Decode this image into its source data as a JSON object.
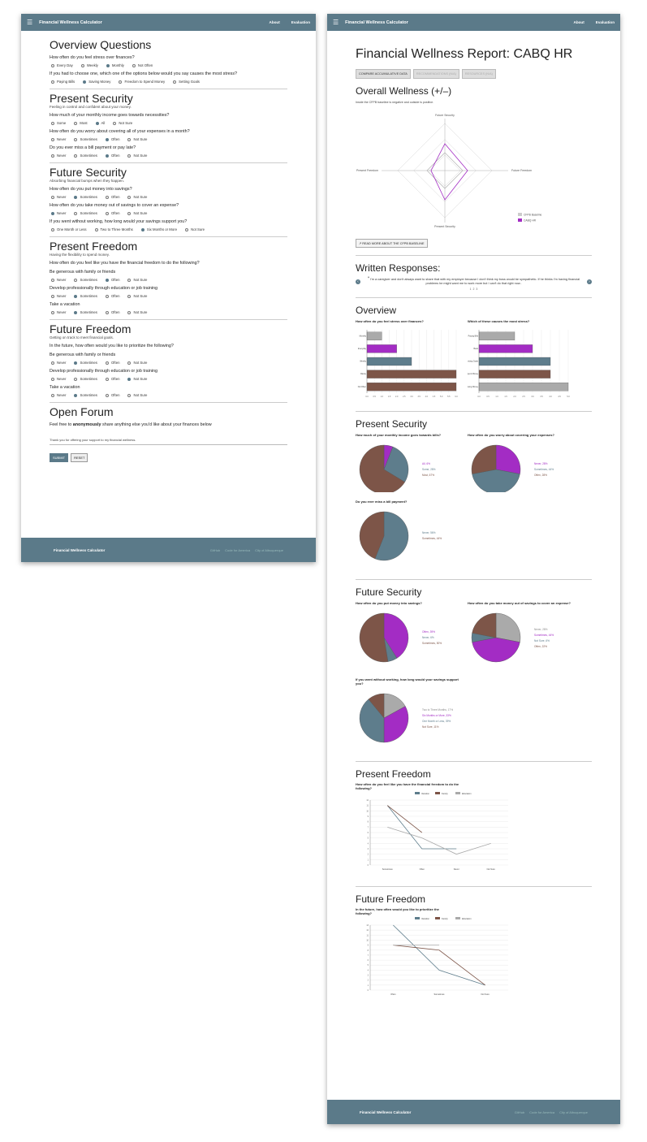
{
  "app": {
    "title": "Financial Wellness Calculator",
    "nav": [
      "About",
      "Evaluation"
    ],
    "footer_links": [
      "GitHub",
      "Code for America",
      "City of Albuquerque"
    ]
  },
  "survey": {
    "overview_title": "Overview Questions",
    "q1": "How often do you feel stress over finances?",
    "q1_opts": [
      "Every Day",
      "Weekly",
      "Monthly",
      "Not Often"
    ],
    "q2": "If you had to choose one, which one of the options below would you say causes the most stress?",
    "q2_opts": [
      "Paying Bills",
      "Saving Money",
      "Freedom to Spend Money",
      "Setting Goals"
    ],
    "ps_title": "Present Security",
    "ps_sub": "Feeling in control and confident about your money.",
    "ps_q1": "How much of your monthly income goes towards necessities?",
    "ps_q1_opts": [
      "Some",
      "Most",
      "All",
      "Not Sure"
    ],
    "ps_q2": "How often do you worry about covering all of your expenses in a month?",
    "ps_q2_opts": [
      "Never",
      "Sometimes",
      "Often",
      "Not Sure"
    ],
    "ps_q3": "Do you ever miss a bill payment or pay late?",
    "ps_q3_opts": [
      "Never",
      "Sometimes",
      "Often",
      "Not Sure"
    ],
    "fs_title": "Future Security",
    "fs_sub": "Absorbing financial bumps when they happen.",
    "fs_q1": "How often do you put money into savings?",
    "fs_q1_opts": [
      "Never",
      "Sometimes",
      "Often",
      "Not Sure"
    ],
    "fs_q2": "How often do you take money out of savings to cover an expense?",
    "fs_q2_opts": [
      "Never",
      "Sometimes",
      "Often",
      "Not Sure"
    ],
    "fs_q3": "If you went without working, how long would your savings support you?",
    "fs_q3_opts": [
      "One Month or Less",
      "Two to Three Months",
      "Six Months or More",
      "Not Sure"
    ],
    "pf_title": "Present Freedom",
    "pf_sub": "Having the flexibility to spend money.",
    "pf_q": "How often do you feel like you have the financial freedom to do the following?",
    "ff_title": "Future Freedom",
    "ff_sub": "Getting on track to meet financial goals.",
    "ff_q": "In the future, how often would you like to prioritize the following?",
    "sub_items": [
      "Be generous with family or friends",
      "Develop professionally through education or job training",
      "Take a vacation"
    ],
    "freq_opts": [
      "Never",
      "Sometimes",
      "Often",
      "Not Sure"
    ],
    "of_title": "Open Forum",
    "of_prompt_a": "Feel free to ",
    "of_prompt_b": "anonymously",
    "of_prompt_c": " share anything else you'd like about your finances below",
    "of_placeholder": "Thank you for offering your support to my financial wellness.",
    "submit": "SUBMIT",
    "reset": "RESET"
  },
  "report": {
    "title": "Financial Wellness Report: CABQ HR",
    "tabs": [
      "COMPARE ACCUMULATIVE DATA",
      "RECOMMENDATIONS (N/A)",
      "RESOURCES (N/A)"
    ],
    "overall_title": "Overall Wellness (+/–)",
    "overall_note": "Inside the CFPB baseline is negative and outside is positive.",
    "radar_axes": [
      "Future Security",
      "Future Freedom",
      "Present Security",
      "Present Freedom"
    ],
    "radar_legend": [
      "CFPB Baseline",
      "CABQ HR"
    ],
    "read_more": "READ MORE ABOUT THE CFPB BASELINE",
    "written_title": "Written Responses:",
    "quote": "I'm a caregiver and don't always want to share that with my employer because I don't think my boss would be sympathetic. If he thinks I'm having financial problems he might want me to work more but I can't do that right now..",
    "pager": [
      "1",
      "2",
      "3"
    ],
    "overview_title": "Overview",
    "ov_q1": "How often do you feel stress over finances?",
    "ov_q2": "Which of these causes the most stress?",
    "ps_title": "Present Security",
    "ps_q1": "How much of your monthly income goes towards bills?",
    "ps_q2": "How often do you worry about covering your expenses?",
    "ps_q3": "Do you ever miss a bill payment?",
    "fs_title": "Future Security",
    "fs_q1": "How often do you put money into savings?",
    "fs_q2": "How often do you take money out of savings to cover an expense?",
    "fs_q3": "If you went without working, how long would your savings support you?",
    "pf_title": "Present Freedom",
    "pf_q": "How often do you feel like you have the financial freedom to do the following?",
    "ff_title": "Future Freedom",
    "ff_q": "In the future, how often would you like to prioritize the following?"
  },
  "colors": {
    "grey": "#aaaaaa",
    "purple": "#a32cc4",
    "blue": "#5e7d8c",
    "brown": "#7d5548",
    "nav": "#5b7a89"
  },
  "chart_data": [
    {
      "type": "bar",
      "title": "How often do you feel stress over finances?",
      "categories": [
        "Monthly",
        "Everyday",
        "Weekly",
        "Rarely",
        "Not Often"
      ],
      "values": [
        1,
        2,
        3,
        6,
        6
      ],
      "xlim": [
        0,
        6
      ],
      "colors": [
        "#aaaaaa",
        "#a32cc4",
        "#5e7d8c",
        "#7d5548",
        "#7d5548"
      ]
    },
    {
      "type": "bar",
      "title": "Which of these causes the most stress?",
      "categories": [
        "Paying Bills",
        "Bank",
        "Setting Goals",
        "Freedom to Spend Money",
        "Saving Money"
      ],
      "values": [
        2,
        3,
        4,
        4,
        5
      ],
      "xlim": [
        0,
        5
      ],
      "colors": [
        "#aaaaaa",
        "#a32cc4",
        "#5e7d8c",
        "#7d5548",
        "#aaaaaa"
      ]
    },
    {
      "type": "pie",
      "title": "How much of your monthly income goes towards bills?",
      "labels": [
        "All, 6%",
        "Some, 28%",
        "Most, 67%"
      ],
      "values": [
        6,
        28,
        67
      ],
      "colors": [
        "#a32cc4",
        "#5e7d8c",
        "#7d5548"
      ]
    },
    {
      "type": "pie",
      "title": "How often do you worry about covering your expenses?",
      "labels": [
        "Never, 28%",
        "Sometimes, 44%",
        "Often, 28%"
      ],
      "values": [
        28,
        44,
        28
      ],
      "colors": [
        "#a32cc4",
        "#5e7d8c",
        "#7d5548"
      ]
    },
    {
      "type": "pie",
      "title": "Do you ever miss a bill payment?",
      "labels": [
        "Never, 56%",
        "Sometimes, 44%"
      ],
      "values": [
        56,
        44
      ],
      "colors": [
        "#5e7d8c",
        "#7d5548"
      ]
    },
    {
      "type": "pie",
      "title": "How often do you put money into savings?",
      "labels": [
        "Often, 39%",
        "Never, 6%",
        "Sometimes, 50%"
      ],
      "values": [
        39,
        6,
        50
      ],
      "colors": [
        "#a32cc4",
        "#5e7d8c",
        "#7d5548"
      ]
    },
    {
      "type": "pie",
      "title": "How often do you take money out of savings to cover an expense?",
      "labels": [
        "Never, 28%",
        "Sometimes, 44%",
        "Not Sure, 6%",
        "Often, 22%"
      ],
      "values": [
        28,
        44,
        6,
        22
      ],
      "colors": [
        "#aaaaaa",
        "#a32cc4",
        "#5e7d8c",
        "#7d5548"
      ]
    },
    {
      "type": "pie",
      "title": "If you went without working, how long would your savings support you?",
      "labels": [
        "Two to Three Months, 17%",
        "Six Months or More, 33%",
        "One Month or Less, 39%",
        "Not Sure, 11%"
      ],
      "values": [
        17,
        33,
        39,
        11
      ],
      "colors": [
        "#aaaaaa",
        "#a32cc4",
        "#5e7d8c",
        "#7d5548"
      ]
    },
    {
      "type": "line",
      "title": "How often do you feel like you have the financial freedom to do the following?",
      "x": [
        "Sometimes",
        "Often",
        "Never",
        "Not Sure"
      ],
      "series": [
        {
          "name": "Vacation",
          "values": [
            11,
            3,
            3,
            null
          ]
        },
        {
          "name": "Family",
          "values": [
            11,
            6,
            null,
            null
          ]
        },
        {
          "name": "Education",
          "values": [
            7,
            5,
            2,
            4
          ]
        }
      ],
      "ylim": [
        0,
        12
      ]
    },
    {
      "type": "line",
      "title": "In the future, how often would you like to prioritize the following?",
      "x": [
        "Often",
        "Sometimes",
        "Not Sure"
      ],
      "series": [
        {
          "name": "Vacation",
          "values": [
            13,
            4,
            1
          ]
        },
        {
          "name": "Family",
          "values": [
            9,
            8,
            1
          ]
        },
        {
          "name": "Education",
          "values": [
            9,
            9,
            null
          ]
        }
      ],
      "ylim": [
        0,
        13
      ]
    }
  ]
}
